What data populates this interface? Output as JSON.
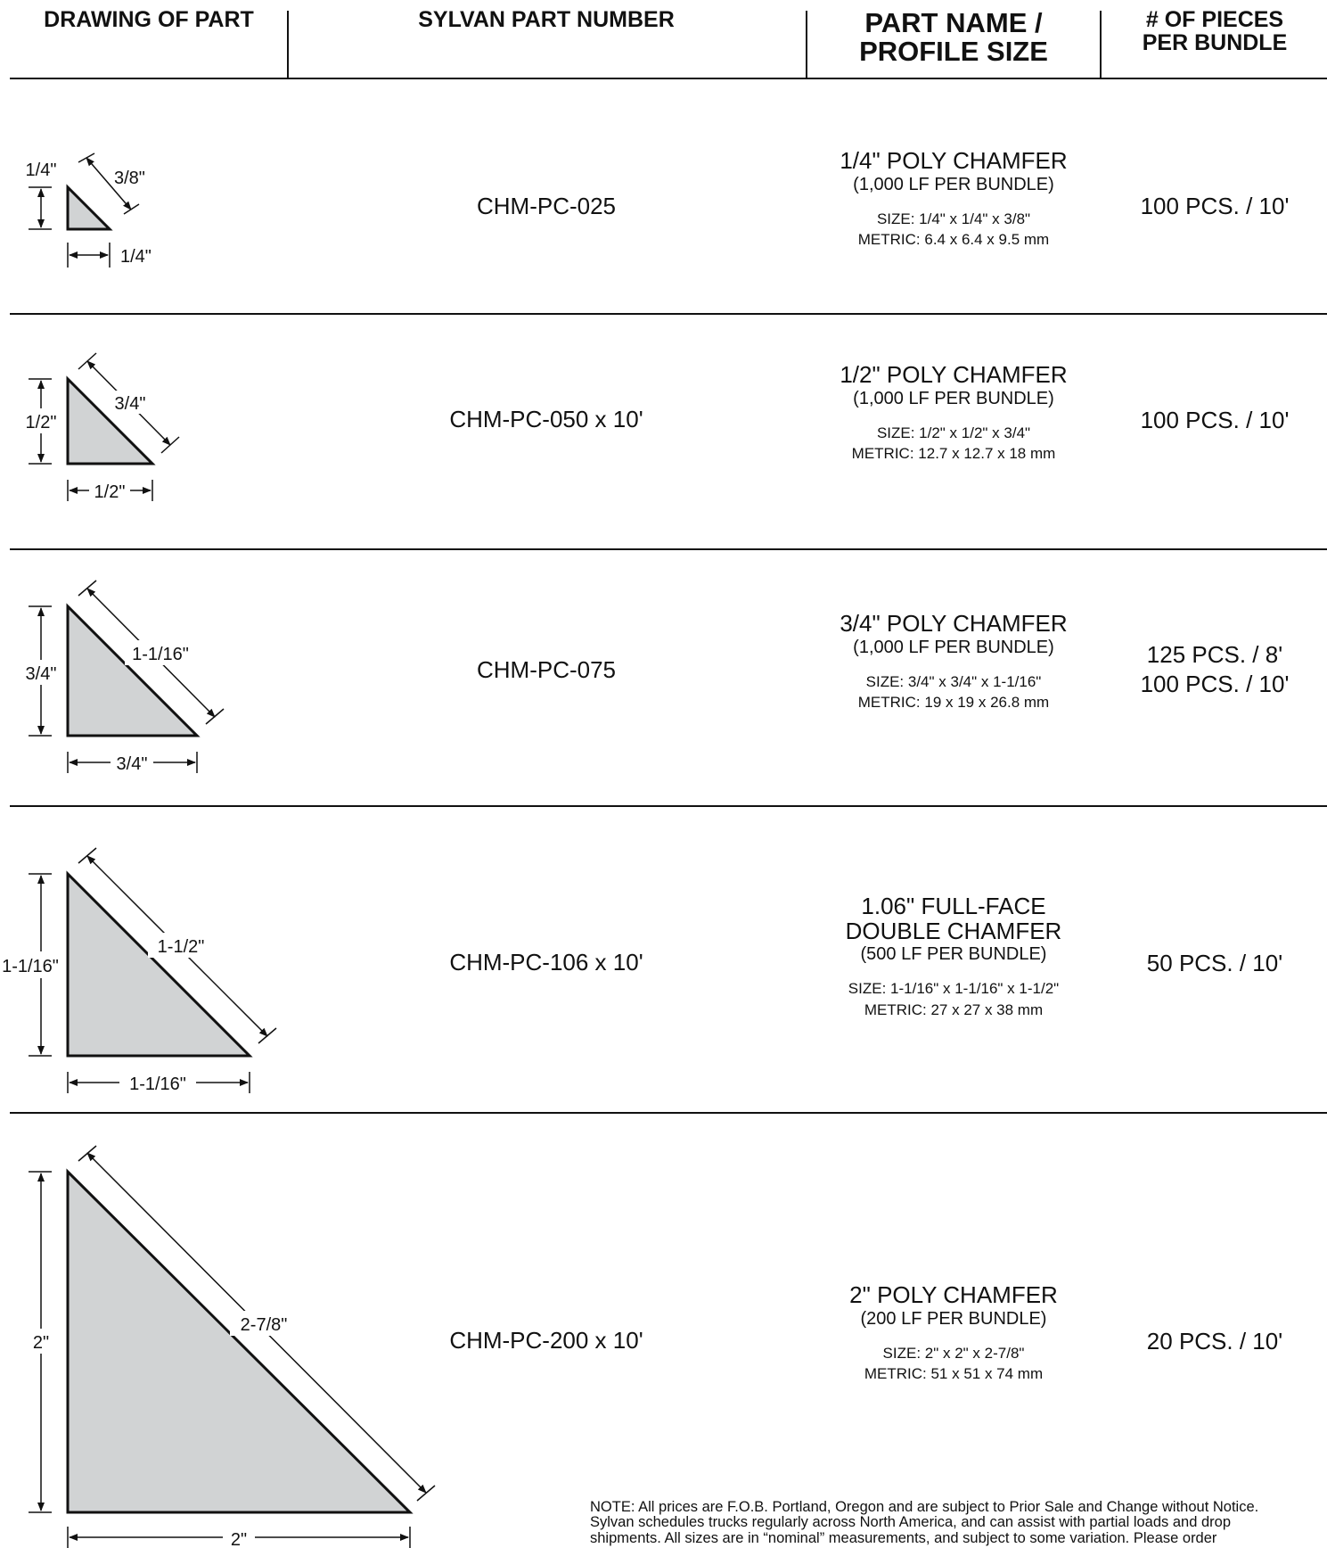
{
  "header": {
    "drawing": "DRAWING OF PART",
    "part_number": "SYLVAN PART NUMBER",
    "part_name_l1": "PART NAME /",
    "part_name_l2": "PROFILE SIZE",
    "pieces_l1": "# OF PIECES",
    "pieces_l2": "PER BUNDLE"
  },
  "rows": [
    {
      "part_number": "CHM-PC-025",
      "name_l1": "1/4\" POLY CHAMFER",
      "name_l2": "",
      "bundle": "(1,000 LF PER BUNDLE)",
      "size": "SIZE: 1/4\" x 1/4\" x 3/8\"",
      "metric": "METRIC: 6.4 x 6.4 x 9.5 mm",
      "pieces_l1": "100 PCS. / 10'",
      "pieces_l2": "",
      "dim_vertical": "1/4\"",
      "dim_horizontal": "1/4\"",
      "dim_diagonal": "3/8\""
    },
    {
      "part_number": "CHM-PC-050 x 10'",
      "name_l1": "1/2\" POLY CHAMFER",
      "name_l2": "",
      "bundle": "(1,000 LF PER BUNDLE)",
      "size": "SIZE: 1/2\" x 1/2\" x 3/4\"",
      "metric": "METRIC: 12.7 x 12.7 x 18 mm",
      "pieces_l1": "100 PCS. / 10'",
      "pieces_l2": "",
      "dim_vertical": "1/2\"",
      "dim_horizontal": "1/2\"",
      "dim_diagonal": "3/4\""
    },
    {
      "part_number": "CHM-PC-075",
      "name_l1": "3/4\" POLY CHAMFER",
      "name_l2": "",
      "bundle": "(1,000 LF PER BUNDLE)",
      "size": "SIZE: 3/4\" x 3/4\" x 1-1/16\"",
      "metric": "METRIC: 19 x 19 x 26.8 mm",
      "pieces_l1": "125 PCS. / 8'",
      "pieces_l2": "100 PCS. / 10'",
      "dim_vertical": "3/4\"",
      "dim_horizontal": "3/4\"",
      "dim_diagonal": "1-1/16\""
    },
    {
      "part_number": "CHM-PC-106 x 10'",
      "name_l1": "1.06\" FULL-FACE",
      "name_l2": "DOUBLE CHAMFER",
      "bundle": "(500 LF PER BUNDLE)",
      "size": "SIZE: 1-1/16\" x 1-1/16\" x 1-1/2\"",
      "metric": "METRIC: 27 x 27 x 38 mm",
      "pieces_l1": "50 PCS. / 10'",
      "pieces_l2": "",
      "dim_vertical": "1-1/16\"",
      "dim_horizontal": "1-1/16\"",
      "dim_diagonal": "1-1/2\""
    },
    {
      "part_number": "CHM-PC-200 x 10'",
      "name_l1": "2\" POLY CHAMFER",
      "name_l2": "",
      "bundle": "(200 LF PER BUNDLE)",
      "size": "SIZE: 2\" x 2\" x 2-7/8\"",
      "metric": "METRIC: 51 x 51 x 74 mm",
      "pieces_l1": "20 PCS. / 10'",
      "pieces_l2": "",
      "dim_vertical": "2\"",
      "dim_horizontal": "2\"",
      "dim_diagonal": "2-7/8\""
    }
  ],
  "note": {
    "l1": "NOTE: All prices are F.O.B. Portland, Oregon and are subject to Prior Sale and Change without Notice.",
    "l2": "Sylvan schedules trucks regularly across North America, and can assist with partial loads and drop",
    "l3": "shipments. All sizes are in “nominal” measurements, and subject to some variation. Please order"
  },
  "colors": {
    "fill": "#d1d3d4",
    "ink": "#111111"
  }
}
